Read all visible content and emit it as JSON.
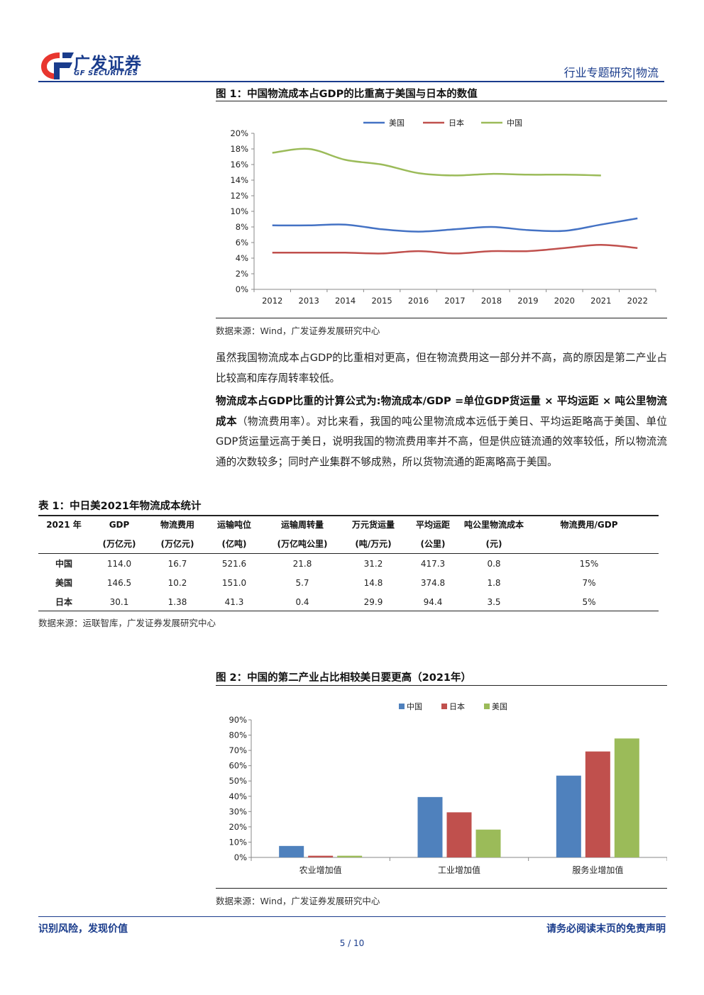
{
  "header": {
    "logo_cn": "广发证券",
    "logo_en": "GF SECURITIES",
    "report_type": "行业专题研究|物流"
  },
  "figure1": {
    "title": "图 1：中国物流成本占GDP的比重高于美国与日本的数值",
    "source": "数据来源：Wind，广发证券发展研究中心"
  },
  "paragraph1": "虽然我国物流成本占GDP的比重相对更高，但在物流费用这一部分并不高，高的原因是第二产业占比较高和库存周转率较低。",
  "paragraph2": {
    "bold": "物流成本占GDP比重的计算公式为:物流成本/GDP =单位GDP货运量 × 平均运距 × 吨公里物流成本",
    "normal": "（物流费用率）。对比来看，我国的吨公里物流成本远低于美日、平均运距略高于美国、单位GDP货运量远高于美日，说明我国的物流费用率并不高，但是供应链流通的效率较低，所以物流流通的次数较多；同时产业集群不够成熟，所以货物流通的距离略高于美国。"
  },
  "table1": {
    "title": "表 1：中日美2021年物流成本统计",
    "headers": [
      "2021 年",
      "GDP",
      "物流费用",
      "运输吨位",
      "运输周转量",
      "万元货运量",
      "平均运距",
      "吨公里物流成本",
      "物流费用/GDP"
    ],
    "units": [
      "",
      "(万亿元)",
      "(万亿元)",
      "(亿吨)",
      "(万亿吨公里)",
      "(吨/万元)",
      "(公里)",
      "(元)",
      ""
    ],
    "rows": [
      [
        "中国",
        "114.0",
        "16.7",
        "521.6",
        "21.8",
        "31.2",
        "417.3",
        "0.8",
        "15%"
      ],
      [
        "美国",
        "146.5",
        "10.2",
        "151.0",
        "5.7",
        "14.8",
        "374.8",
        "1.8",
        "7%"
      ],
      [
        "日本",
        "30.1",
        "1.38",
        "41.3",
        "0.4",
        "29.9",
        "94.4",
        "3.5",
        "5%"
      ]
    ],
    "source": "数据来源：运联智库，广发证券发展研究中心"
  },
  "figure2": {
    "title": "图 2：中国的第二产业占比相较美日要更高（2021年）",
    "source": "数据来源：Wind，广发证券发展研究中心"
  },
  "chart_data": [
    {
      "type": "line",
      "x": [
        "2012",
        "2013",
        "2014",
        "2015",
        "2016",
        "2017",
        "2018",
        "2019",
        "2020",
        "2021",
        "2022"
      ],
      "series": [
        {
          "name": "美国",
          "color": "#4472c4",
          "values": [
            8.2,
            8.2,
            8.3,
            7.7,
            7.4,
            7.7,
            8.0,
            7.6,
            7.5,
            8.3,
            9.1
          ]
        },
        {
          "name": "日本",
          "color": "#c0504d",
          "values": [
            4.7,
            4.7,
            4.7,
            4.6,
            4.9,
            4.6,
            4.9,
            4.9,
            5.3,
            5.7,
            5.3
          ]
        },
        {
          "name": "中国",
          "color": "#9bbb59",
          "values": [
            17.5,
            18.0,
            16.6,
            16.0,
            14.9,
            14.6,
            14.8,
            14.7,
            14.7,
            14.6,
            null
          ]
        }
      ],
      "ylim": [
        0,
        20
      ],
      "yticks": [
        "0%",
        "2%",
        "4%",
        "6%",
        "8%",
        "10%",
        "12%",
        "14%",
        "16%",
        "18%",
        "20%"
      ],
      "legend": "top",
      "grid": false
    },
    {
      "type": "bar",
      "categories": [
        "农业增加值",
        "工业增加值",
        "服务业增加值"
      ],
      "series": [
        {
          "name": "中国",
          "color": "#4f81bd",
          "values": [
            7.5,
            39.5,
            53.5
          ]
        },
        {
          "name": "日本",
          "color": "#c0504d",
          "values": [
            1.1,
            29.5,
            69.3
          ]
        },
        {
          "name": "美国",
          "color": "#9bbb59",
          "values": [
            1.1,
            18.2,
            77.8
          ]
        }
      ],
      "ylim": [
        0,
        90
      ],
      "yticks": [
        "0%",
        "10%",
        "20%",
        "30%",
        "40%",
        "50%",
        "60%",
        "70%",
        "80%",
        "90%"
      ],
      "legend": "top",
      "grid": false
    }
  ],
  "footer": {
    "left": "识别风险，发现价值",
    "right": "请务必阅读末页的免责声明",
    "page": "5 / 10"
  }
}
